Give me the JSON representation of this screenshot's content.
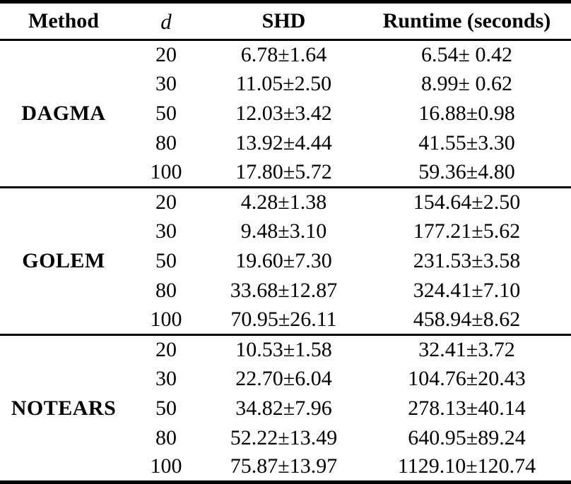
{
  "table": {
    "headers": {
      "method": "Method",
      "d": "d",
      "shd": "SHD",
      "runtime": "Runtime (seconds)"
    },
    "sections": [
      {
        "method": "DAGMA",
        "rows": [
          {
            "d": "20",
            "shd": "6.78±1.64",
            "runtime": "6.54± 0.42"
          },
          {
            "d": "30",
            "shd": "11.05±2.50",
            "runtime": "8.99± 0.62"
          },
          {
            "d": "50",
            "shd": "12.03±3.42",
            "runtime": "16.88±0.98"
          },
          {
            "d": "80",
            "shd": "13.92±4.44",
            "runtime": "41.55±3.30"
          },
          {
            "d": "100",
            "shd": "17.80±5.72",
            "runtime": "59.36±4.80"
          }
        ]
      },
      {
        "method": "GOLEM",
        "rows": [
          {
            "d": "20",
            "shd": "4.28±1.38",
            "runtime": "154.64±2.50"
          },
          {
            "d": "30",
            "shd": "9.48±3.10",
            "runtime": "177.21±5.62"
          },
          {
            "d": "50",
            "shd": "19.60±7.30",
            "runtime": "231.53±3.58"
          },
          {
            "d": "80",
            "shd": "33.68±12.87",
            "runtime": "324.41±7.10"
          },
          {
            "d": "100",
            "shd": "70.95±26.11",
            "runtime": "458.94±8.62"
          }
        ]
      },
      {
        "method": "NOTEARS",
        "rows": [
          {
            "d": "20",
            "shd": "10.53±1.58",
            "runtime": "32.41±3.72"
          },
          {
            "d": "30",
            "shd": "22.70±6.04",
            "runtime": "104.76±20.43"
          },
          {
            "d": "50",
            "shd": "34.82±7.96",
            "runtime": "278.13±40.14"
          },
          {
            "d": "80",
            "shd": "52.22±13.49",
            "runtime": "640.95±89.24"
          },
          {
            "d": "100",
            "shd": "75.87±13.97",
            "runtime": "1129.10±120.74"
          }
        ]
      }
    ]
  },
  "colors": {
    "text": "#000000",
    "background": "#ffffff",
    "rule": "#000000"
  }
}
